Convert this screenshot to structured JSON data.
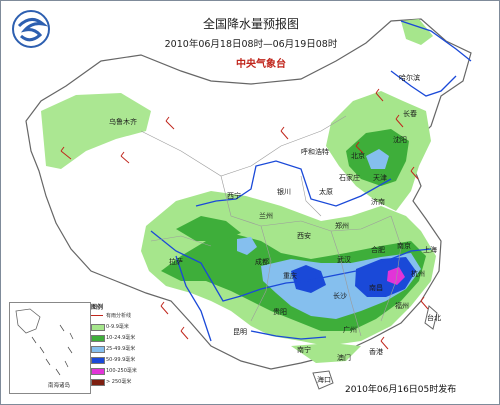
{
  "map": {
    "title": "全国降水量预报图",
    "period": "2010年06月18日08时—06月19日08时",
    "agency": "中央气象台",
    "issued": "2010年06月16日05时发布",
    "colors": {
      "rain_light": "#a6e68c",
      "rain_moderate": "#3eae3a",
      "rain_heavy": "#85bfee",
      "rain_storm": "#1a49d8",
      "rain_big_storm": "#e234d8",
      "rain_extreme": "#7d1f10",
      "river": "#1a49d8",
      "border": "#9c9c9c"
    },
    "cities": {
      "urumqi": "乌鲁木齐",
      "harbin": "哈尔滨",
      "changchun": "长春",
      "shenyang": "沈阳",
      "hohhot": "呼和浩特",
      "beijing": "北京",
      "tianjin": "天津",
      "shijiazhuang": "石家庄",
      "taiyuan": "太原",
      "jinan": "济南",
      "yinchuan": "银川",
      "xining": "西宁",
      "lanzhou": "兰州",
      "xian": "西安",
      "zhengzhou": "郑州",
      "hefei": "合肥",
      "nanjing": "南京",
      "shanghai": "上海",
      "wuhan": "武汉",
      "hangzhou": "杭州",
      "chengdu": "成都",
      "chongqing": "重庆",
      "lhasa": "拉萨",
      "changsha": "长沙",
      "nanchang": "南昌",
      "fuzhou": "福州",
      "guiyang": "贵阳",
      "kunming": "昆明",
      "guangzhou": "广州",
      "nanning": "南宁",
      "hongkong": "香港",
      "macau": "澳门",
      "haikou": "海口",
      "taipei": "台北"
    },
    "legend": {
      "title": "图例",
      "items": [
        {
          "label": "有雨分析线",
          "color": "#c0261c"
        },
        {
          "label": "0-9.9毫米",
          "color": "#a6e68c"
        },
        {
          "label": "10-24.9毫米",
          "color": "#3eae3a"
        },
        {
          "label": "25-49.9毫米",
          "color": "#85bfee"
        },
        {
          "label": "50-99.9毫米",
          "color": "#1a49d8"
        },
        {
          "label": "100-250毫米",
          "color": "#e234d8"
        },
        {
          "label": "> 250毫米",
          "color": "#7d1f10"
        }
      ]
    },
    "inset": {
      "label": "南海诸岛"
    }
  }
}
